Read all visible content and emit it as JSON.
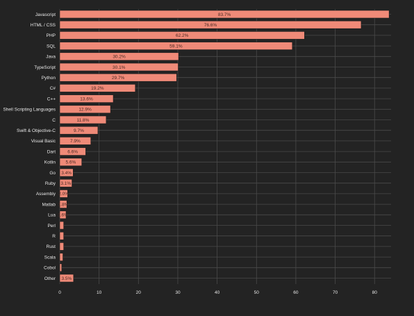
{
  "chart_data": {
    "type": "bar",
    "orientation": "horizontal",
    "categories": [
      "Javascript",
      "HTML / CSS",
      "PHP",
      "SQL",
      "Java",
      "TypeScript",
      "Python",
      "C#",
      "C++",
      "Shell Scripting Languages",
      "C",
      "Swift & Objective-C",
      "Visual Basic",
      "Dart",
      "Kotlin",
      "Go",
      "Ruby",
      "Assembly",
      "Matlab",
      "Lua",
      "Perl",
      "R",
      "Rust",
      "Scala",
      "Cobol",
      "Other"
    ],
    "values": [
      83.7,
      76.6,
      62.2,
      59.1,
      30.2,
      30.1,
      29.7,
      19.2,
      13.6,
      12.9,
      11.8,
      9.7,
      7.9,
      6.6,
      5.6,
      3.4,
      3.1,
      2.0,
      1.8,
      1.6,
      1.0,
      1.0,
      1.0,
      0.8,
      0.5,
      3.5
    ],
    "labels": [
      "83.7%",
      "76.6%",
      "62.2%",
      "59.1%",
      "30.2%",
      "30.1%",
      "29.7%",
      "19.2%",
      "13.6%",
      "12.9%",
      "11.8%",
      "9.7%",
      "7.9%",
      "6.6%",
      "5.6%",
      "3.4%",
      "3.1%",
      "2.0%",
      "1.8%",
      "1.6%",
      "",
      "",
      "",
      "",
      "",
      "3.5%"
    ],
    "xticks": [
      0,
      10,
      20,
      30,
      40,
      50,
      60,
      70,
      80
    ],
    "xlim": [
      0,
      84.2
    ],
    "grid": true,
    "title": "",
    "xlabel": "",
    "ylabel": "",
    "colors": {
      "bar_fill": "#ef8a78",
      "bar_stroke": "#1e1e1e",
      "background": "#232323",
      "grid": "#4a4a4a",
      "text": "#e8e8e8",
      "bar_label": "#4a2a24"
    }
  }
}
